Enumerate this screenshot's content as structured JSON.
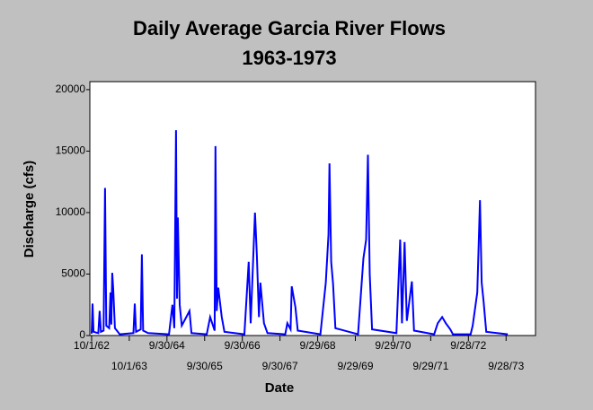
{
  "chart_data": {
    "type": "line",
    "title": "Daily Average Garcia River Flows",
    "subtitle": "1963-1973",
    "x_label": "Date",
    "y_label": "Discharge (cfs)",
    "color": "#0000ff",
    "x": [
      "1962-10-01",
      "1962-10-10",
      "1962-10-20",
      "1962-12-05",
      "1962-12-18",
      "1962-12-30",
      "1963-01-25",
      "1963-02-08",
      "1963-02-20",
      "1963-03-20",
      "1963-04-02",
      "1963-04-10",
      "1963-04-19",
      "1963-04-28",
      "1963-05-15",
      "1963-07-01",
      "1963-11-10",
      "1963-11-23",
      "1963-12-05",
      "1964-01-20",
      "1964-01-31",
      "1964-02-12",
      "1964-04-01",
      "1964-10-20",
      "1964-11-22",
      "1964-12-10",
      "1964-12-27",
      "1965-01-05",
      "1965-01-13",
      "1965-01-31",
      "1965-02-20",
      "1965-05-06",
      "1965-05-25",
      "1965-10-20",
      "1965-11-22",
      "1966-01-05",
      "1966-01-13",
      "1966-01-25",
      "1966-02-09",
      "1966-03-15",
      "1966-04-10",
      "1966-10-20",
      "1966-12-01",
      "1966-12-20",
      "1967-01-31",
      "1967-02-18",
      "1967-03-10",
      "1967-03-24",
      "1967-04-28",
      "1967-06-01",
      "1967-11-20",
      "1967-12-10",
      "1968-01-10",
      "1968-01-22",
      "1968-02-26",
      "1968-03-20",
      "1968-10-25",
      "1968-12-17",
      "1969-01-12",
      "1969-01-21",
      "1969-02-07",
      "1969-02-25",
      "1969-03-20",
      "1969-10-25",
      "1969-12-16",
      "1970-01-11",
      "1970-01-29",
      "1970-02-15",
      "1970-03-10",
      "1970-11-01",
      "1970-12-07",
      "1970-12-25",
      "1971-01-19",
      "1971-02-10",
      "1971-03-30",
      "1971-04-20",
      "1971-11-01",
      "1971-12-06",
      "1972-01-18",
      "1972-02-22",
      "1972-04-06",
      "1972-05-01",
      "1972-10-20",
      "1972-11-09",
      "1972-12-23",
      "1973-01-18",
      "1973-02-04",
      "1973-02-22",
      "1973-03-20",
      "1973-10-15"
    ],
    "values": [
      150,
      2600,
      300,
      200,
      2000,
      300,
      400,
      12000,
      800,
      600,
      3500,
      900,
      5100,
      3800,
      600,
      100,
      200,
      2600,
      300,
      500,
      6600,
      400,
      200,
      100,
      2500,
      600,
      16700,
      3000,
      9600,
      2500,
      800,
      2000,
      200,
      100,
      1500,
      400,
      15400,
      2000,
      3900,
      1500,
      300,
      100,
      6000,
      1000,
      10000,
      6500,
      1500,
      4300,
      1000,
      200,
      100,
      1000,
      500,
      4000,
      2300,
      400,
      100,
      4300,
      8200,
      14000,
      6000,
      4200,
      600,
      100,
      6300,
      7800,
      14700,
      5000,
      500,
      200,
      7800,
      1000,
      7600,
      1200,
      4400,
      400,
      100,
      1000,
      1500,
      1000,
      500,
      100,
      100,
      800,
      3500,
      11000,
      4300,
      2800,
      300,
      100
    ],
    "xlim": [
      "1962-09-14",
      "1974-07-10"
    ],
    "xticks": [
      {
        "value": "1962-10-01",
        "label": "10/1/62"
      },
      {
        "value": "1963-10-01",
        "label": "10/1/63"
      },
      {
        "value": "1964-09-30",
        "label": "9/30/64"
      },
      {
        "value": "1965-09-30",
        "label": "9/30/65"
      },
      {
        "value": "1966-09-30",
        "label": "9/30/66"
      },
      {
        "value": "1967-09-30",
        "label": "9/30/67"
      },
      {
        "value": "1968-09-29",
        "label": "9/29/68"
      },
      {
        "value": "1969-09-29",
        "label": "9/29/69"
      },
      {
        "value": "1970-09-29",
        "label": "9/29/70"
      },
      {
        "value": "1971-09-29",
        "label": "9/29/71"
      },
      {
        "value": "1972-09-28",
        "label": "9/28/72"
      },
      {
        "value": "1973-09-28",
        "label": "9/28/73"
      }
    ],
    "ylim": [
      0,
      20650
    ],
    "yticks": [
      0,
      5000,
      10000,
      15000,
      20000
    ]
  }
}
